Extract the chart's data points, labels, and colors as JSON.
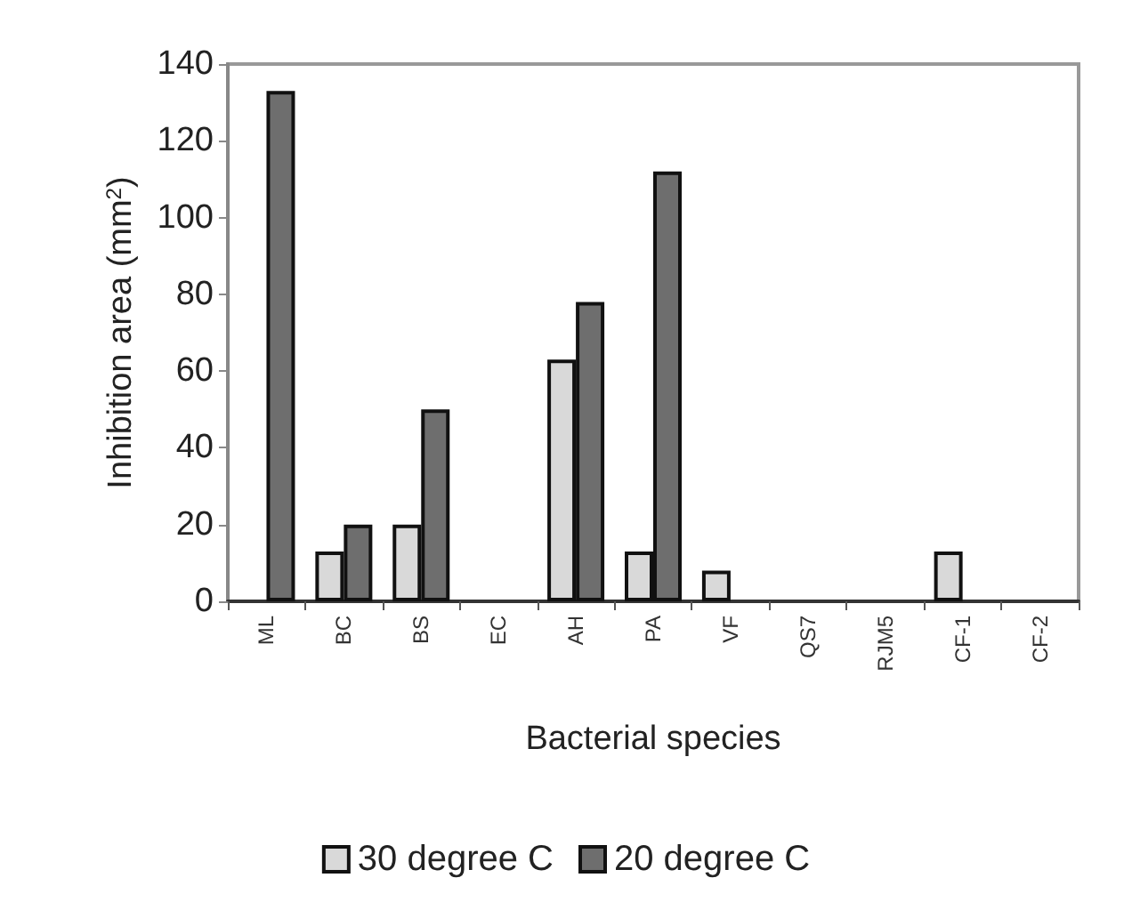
{
  "chart_data": {
    "type": "bar",
    "xlabel": "Bacterial species",
    "ylabel": "Inhibition area (mm$^{2}$)",
    "categories": [
      "ML",
      "BC",
      "BS",
      "EC",
      "AH",
      "PA",
      "VF",
      "QS7",
      "RJM5",
      "CF-1",
      "CF-2"
    ],
    "series": [
      {
        "name": "30 degree C",
        "color": "#d9d9d9",
        "values": [
          null,
          13,
          20,
          null,
          63,
          13,
          8,
          null,
          null,
          13,
          null
        ]
      },
      {
        "name": "20 degree C",
        "color": "#6e6e6e",
        "values": [
          133,
          20,
          50,
          null,
          78,
          112,
          null,
          null,
          null,
          null,
          null
        ]
      }
    ],
    "ylim": [
      0,
      140
    ],
    "yticks": [
      0,
      20,
      40,
      60,
      80,
      100,
      120,
      140
    ],
    "grid": false,
    "legend": "bottom"
  }
}
